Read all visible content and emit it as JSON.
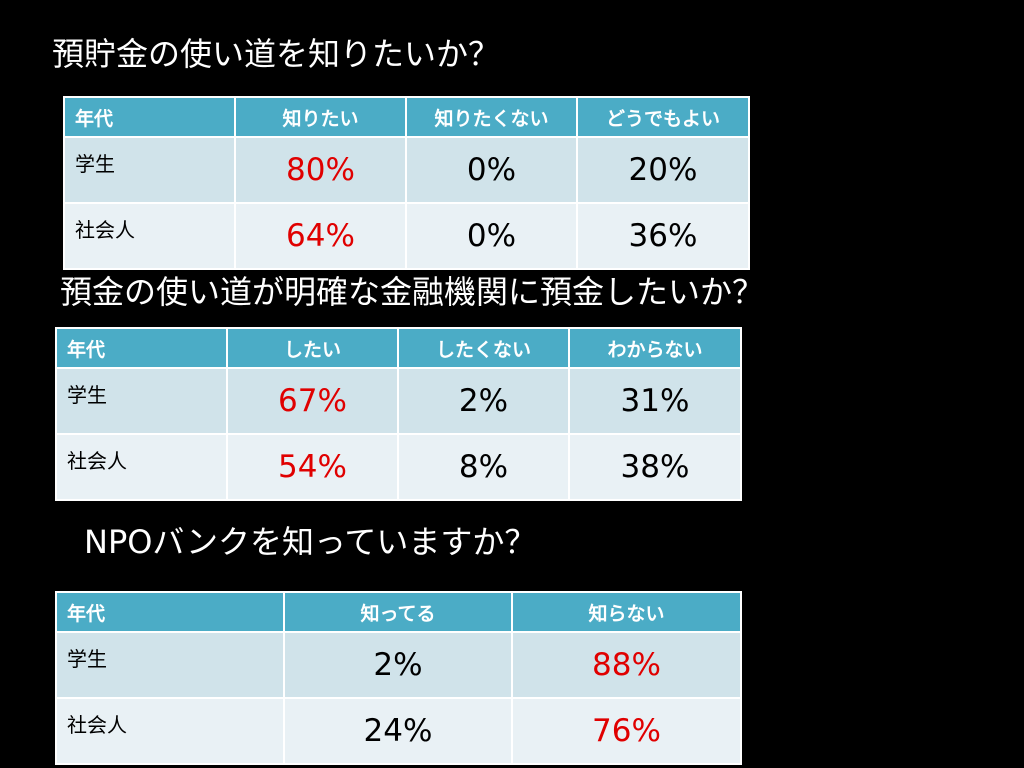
{
  "colors": {
    "background": "#000000",
    "header": "#4bacc6",
    "row_odd": "#d0e3ea",
    "row_even": "#e9f1f5",
    "highlight": "#e00000"
  },
  "sections": [
    {
      "title": "預貯金の使い道を知りたいか？",
      "headers": [
        "年代",
        "知りたい",
        "知りたくない",
        "どうでもよい"
      ],
      "rows": [
        {
          "label": "学生",
          "values": [
            "80%",
            "0%",
            "20%"
          ]
        },
        {
          "label": "社会人",
          "values": [
            "64%",
            "0%",
            "36%"
          ]
        }
      ],
      "highlight_column": 0
    },
    {
      "title": "預金の使い道が明確な金融機関に預金したいか？",
      "headers": [
        "年代",
        "したい",
        "したくない",
        "わからない"
      ],
      "rows": [
        {
          "label": "学生",
          "values": [
            "67%",
            "2%",
            "31%"
          ]
        },
        {
          "label": "社会人",
          "values": [
            "54%",
            "8%",
            "38%"
          ]
        }
      ],
      "highlight_column": 0
    },
    {
      "title": "NPOバンクを知っていますか？",
      "headers": [
        "年代",
        "知ってる",
        "知らない"
      ],
      "rows": [
        {
          "label": "学生",
          "values": [
            "2%",
            "88%"
          ]
        },
        {
          "label": "社会人",
          "values": [
            "24%",
            "76%"
          ]
        }
      ],
      "highlight_column": 1
    }
  ]
}
